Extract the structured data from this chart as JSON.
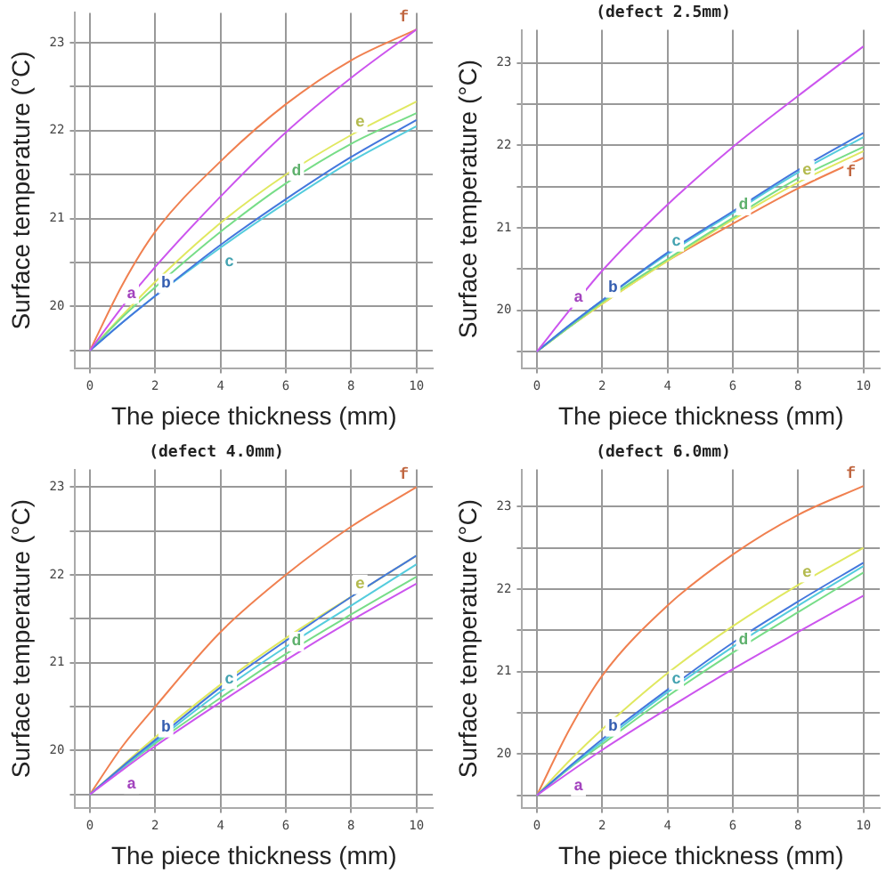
{
  "chart_data": [
    {
      "type": "line",
      "xlabel": "The piece thickness (mm)",
      "ylabel": "Surface temperature (°C)",
      "x": [
        0,
        1,
        2,
        4,
        6,
        8,
        10
      ],
      "xlim": [
        -0.45,
        10.5
      ],
      "xticks": [
        0,
        2,
        4,
        6,
        8,
        10
      ],
      "ylim": [
        19.3,
        23.34
      ],
      "yticks": [
        {
          "value": 19.5,
          "label": null
        },
        20,
        {
          "value": 20.5,
          "label": null
        },
        21,
        {
          "value": 21.5,
          "label": null
        },
        22,
        {
          "value": 22.5,
          "label": null
        },
        23
      ],
      "grid": true,
      "marker": "none",
      "legend": false,
      "series": [
        {
          "name": "a",
          "color": "#cc55ee",
          "values": [
            19.5,
            20.0,
            20.45,
            21.25,
            21.98,
            22.6,
            23.15
          ]
        },
        {
          "name": "b",
          "color": "#4477dd",
          "values": [
            19.5,
            19.82,
            20.12,
            20.7,
            21.22,
            21.7,
            22.12
          ]
        },
        {
          "name": "c",
          "color": "#55ccdd",
          "values": [
            19.5,
            19.82,
            20.12,
            20.67,
            21.18,
            21.65,
            22.05
          ]
        },
        {
          "name": "d",
          "color": "#77dd88",
          "values": [
            19.5,
            19.88,
            20.22,
            20.85,
            21.4,
            21.85,
            22.2
          ]
        },
        {
          "name": "e",
          "color": "#e0e860",
          "values": [
            19.5,
            19.9,
            20.28,
            20.95,
            21.5,
            21.95,
            22.33
          ]
        },
        {
          "name": "f",
          "color": "#f08050",
          "values": [
            19.5,
            20.25,
            20.85,
            21.65,
            22.3,
            22.8,
            23.15
          ]
        }
      ]
    },
    {
      "type": "line",
      "title": "(defect 2.5mm)",
      "xlabel": "The piece thickness (mm)",
      "ylabel": "Surface temperature (°C)",
      "x": [
        0,
        1,
        2,
        4,
        6,
        8,
        10
      ],
      "xlim": [
        -0.45,
        10.5
      ],
      "xticks": [
        0,
        2,
        4,
        6,
        8,
        10
      ],
      "ylim": [
        19.3,
        23.4
      ],
      "yticks": [
        {
          "value": 19.5,
          "label": null
        },
        20,
        {
          "value": 20.5,
          "label": null
        },
        21,
        {
          "value": 21.5,
          "label": null
        },
        22,
        {
          "value": 22.5,
          "label": null
        },
        23
      ],
      "grid": true,
      "marker": "none",
      "legend": false,
      "series": [
        {
          "name": "a",
          "color": "#cc55ee",
          "values": [
            19.5,
            20.0,
            20.48,
            21.28,
            21.98,
            22.6,
            23.2
          ]
        },
        {
          "name": "b",
          "color": "#4477dd",
          "values": [
            19.5,
            19.82,
            20.12,
            20.7,
            21.2,
            21.7,
            22.15
          ]
        },
        {
          "name": "c",
          "color": "#55ccdd",
          "values": [
            19.5,
            19.82,
            20.12,
            20.68,
            21.18,
            21.67,
            22.1
          ]
        },
        {
          "name": "d",
          "color": "#77dd88",
          "values": [
            19.5,
            19.8,
            20.1,
            20.62,
            21.12,
            21.6,
            21.98
          ]
        },
        {
          "name": "e",
          "color": "#e0e860",
          "values": [
            19.5,
            19.8,
            20.08,
            20.6,
            21.1,
            21.55,
            21.93
          ]
        },
        {
          "name": "f",
          "color": "#f08050",
          "values": [
            19.5,
            19.8,
            20.08,
            20.6,
            21.05,
            21.48,
            21.85
          ]
        }
      ]
    },
    {
      "type": "line",
      "title": "(defect 4.0mm)",
      "xlabel": "The piece thickness (mm)",
      "ylabel": "Surface temperature (°C)",
      "x": [
        0,
        1,
        2,
        4,
        6,
        8,
        10
      ],
      "xlim": [
        -0.45,
        10.5
      ],
      "xticks": [
        0,
        2,
        4,
        6,
        8,
        10
      ],
      "ylim": [
        19.35,
        23.2
      ],
      "yticks": [
        {
          "value": 19.5,
          "label": null
        },
        20,
        {
          "value": 20.5,
          "label": null
        },
        21,
        {
          "value": 21.5,
          "label": null
        },
        22,
        {
          "value": 22.5,
          "label": null
        },
        23
      ],
      "grid": true,
      "marker": "none",
      "legend": false,
      "series": [
        {
          "name": "a",
          "color": "#cc55ee",
          "values": [
            19.5,
            19.78,
            20.05,
            20.55,
            21.03,
            21.48,
            21.9
          ]
        },
        {
          "name": "b",
          "color": "#4477dd",
          "values": [
            19.5,
            19.82,
            20.12,
            20.72,
            21.25,
            21.75,
            22.22
          ]
        },
        {
          "name": "c",
          "color": "#55ccdd",
          "values": [
            19.5,
            19.81,
            20.1,
            20.67,
            21.18,
            21.65,
            22.12
          ]
        },
        {
          "name": "d",
          "color": "#77dd88",
          "values": [
            19.5,
            19.8,
            20.08,
            20.6,
            21.1,
            21.55,
            21.98
          ]
        },
        {
          "name": "e",
          "color": "#e0e860",
          "values": [
            19.5,
            19.83,
            20.15,
            20.75,
            21.28,
            21.75,
            22.22
          ]
        },
        {
          "name": "f",
          "color": "#f08050",
          "values": [
            19.5,
            20.05,
            20.5,
            21.35,
            22.0,
            22.55,
            23.0
          ]
        }
      ]
    },
    {
      "type": "line",
      "title": "(defect 6.0mm)",
      "xlabel": "The piece thickness (mm)",
      "ylabel": "Surface temperature (°C)",
      "x": [
        0,
        1,
        2,
        4,
        6,
        8,
        10
      ],
      "xlim": [
        -0.45,
        10.5
      ],
      "xticks": [
        0,
        2,
        4,
        6,
        8,
        10
      ],
      "ylim": [
        19.35,
        23.45
      ],
      "yticks": [
        {
          "value": 19.5,
          "label": null
        },
        20,
        {
          "value": 20.5,
          "label": null
        },
        21,
        {
          "value": 21.5,
          "label": null
        },
        22,
        {
          "value": 22.5,
          "label": null
        },
        23
      ],
      "grid": true,
      "marker": "none",
      "legend": false,
      "series": [
        {
          "name": "a",
          "color": "#cc55ee",
          "values": [
            19.5,
            19.78,
            20.05,
            20.55,
            21.03,
            21.48,
            21.92
          ]
        },
        {
          "name": "b",
          "color": "#4477dd",
          "values": [
            19.5,
            19.85,
            20.18,
            20.78,
            21.35,
            21.85,
            22.32
          ]
        },
        {
          "name": "c",
          "color": "#55ccdd",
          "values": [
            19.5,
            19.84,
            20.15,
            20.75,
            21.3,
            21.8,
            22.28
          ]
        },
        {
          "name": "d",
          "color": "#77dd88",
          "values": [
            19.5,
            19.83,
            20.12,
            20.7,
            21.23,
            21.72,
            22.2
          ]
        },
        {
          "name": "e",
          "color": "#e0e860",
          "values": [
            19.5,
            19.92,
            20.3,
            20.98,
            21.55,
            22.05,
            22.5
          ]
        },
        {
          "name": "f",
          "color": "#f08050",
          "values": [
            19.5,
            20.3,
            20.95,
            21.8,
            22.42,
            22.9,
            23.25
          ]
        }
      ]
    }
  ]
}
